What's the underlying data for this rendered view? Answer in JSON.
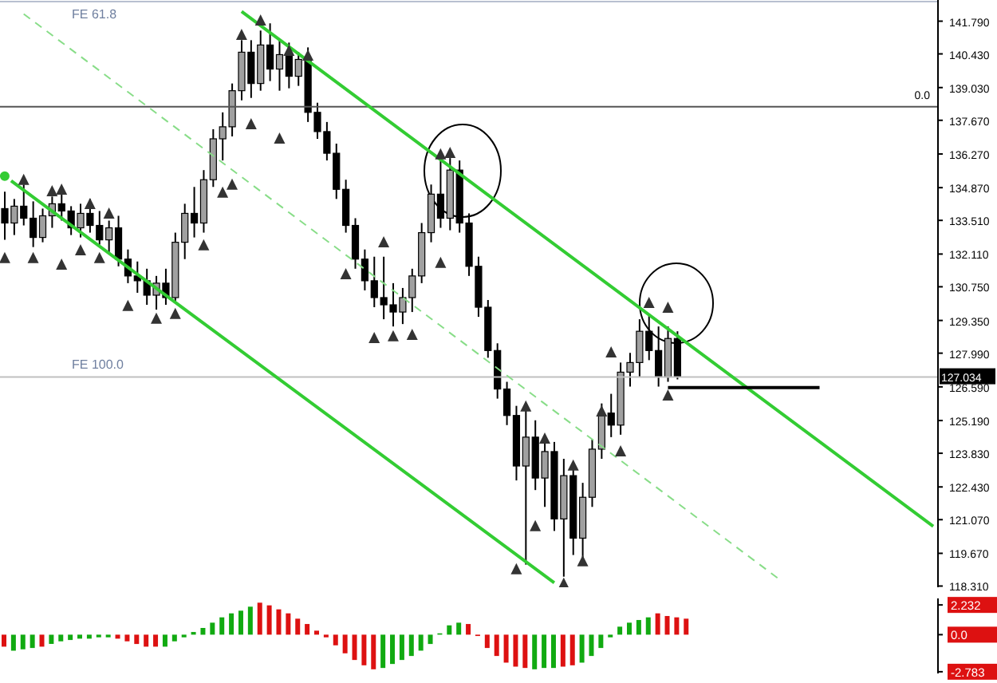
{
  "chart_data": [
    {
      "type": "candlestick",
      "categories": [
        null,
        null,
        null,
        null,
        null,
        null,
        null,
        null,
        null,
        null,
        null,
        null,
        null,
        null,
        null,
        null,
        null,
        null,
        null,
        null,
        null,
        null,
        null,
        null,
        null,
        null,
        null,
        null,
        null,
        null,
        null,
        null,
        null,
        null,
        null,
        null,
        null,
        null,
        null,
        null,
        null,
        null,
        null,
        null,
        null,
        null,
        null,
        null,
        null,
        null,
        null,
        null,
        null,
        null,
        null,
        null,
        null,
        null,
        null,
        null,
        null,
        null,
        null,
        null,
        null,
        null,
        null,
        null,
        null,
        null,
        null,
        null,
        null,
        null,
        null,
        null,
        null,
        null,
        null,
        null,
        null,
        null,
        null,
        null,
        null,
        null,
        null,
        null,
        null,
        null,
        null,
        null,
        null,
        null,
        null,
        null,
        null,
        null,
        null
      ],
      "ohlc": [
        [
          134.0,
          134.7,
          132.7,
          133.4
        ],
        [
          133.4,
          134.4,
          132.9,
          134.1
        ],
        [
          134.1,
          135.0,
          133.3,
          133.6
        ],
        [
          133.6,
          134.3,
          132.4,
          132.8
        ],
        [
          132.8,
          134.0,
          132.6,
          133.7
        ],
        [
          133.7,
          134.5,
          133.2,
          134.2
        ],
        [
          134.2,
          134.8,
          133.5,
          133.9
        ],
        [
          133.9,
          134.1,
          132.9,
          133.2
        ],
        [
          133.2,
          134.2,
          132.8,
          133.8
        ],
        [
          133.8,
          134.4,
          133.0,
          133.3
        ],
        [
          133.3,
          133.9,
          132.5,
          132.7
        ],
        [
          132.7,
          133.5,
          132.1,
          133.2
        ],
        [
          133.2,
          133.7,
          131.6,
          131.9
        ],
        [
          131.9,
          132.3,
          130.9,
          131.2
        ],
        [
          131.2,
          131.8,
          130.5,
          131.0
        ],
        [
          131.0,
          131.5,
          130.0,
          130.4
        ],
        [
          130.4,
          131.2,
          129.8,
          130.9
        ],
        [
          130.9,
          131.5,
          130.0,
          130.3
        ],
        [
          130.3,
          133.0,
          130.1,
          132.6
        ],
        [
          132.6,
          134.2,
          131.9,
          133.8
        ],
        [
          133.8,
          134.9,
          132.8,
          133.4
        ],
        [
          133.4,
          135.6,
          133.0,
          135.2
        ],
        [
          135.2,
          137.3,
          134.9,
          136.9
        ],
        [
          136.9,
          138.0,
          136.0,
          137.4
        ],
        [
          137.4,
          139.2,
          137.0,
          138.9
        ],
        [
          138.9,
          141.0,
          138.5,
          140.5
        ],
        [
          140.5,
          141.0,
          138.6,
          139.2
        ],
        [
          139.2,
          141.4,
          138.9,
          140.8
        ],
        [
          140.8,
          141.7,
          139.3,
          139.8
        ],
        [
          139.8,
          141.0,
          138.9,
          140.4
        ],
        [
          140.4,
          140.9,
          139.0,
          139.5
        ],
        [
          139.5,
          140.5,
          139.1,
          140.2
        ],
        [
          140.2,
          140.7,
          137.6,
          138.0
        ],
        [
          138.0,
          138.4,
          136.9,
          137.2
        ],
        [
          137.2,
          137.6,
          136.0,
          136.3
        ],
        [
          136.3,
          136.7,
          134.4,
          134.8
        ],
        [
          134.8,
          135.2,
          133.0,
          133.3
        ],
        [
          133.3,
          133.6,
          131.5,
          131.9
        ],
        [
          131.9,
          132.3,
          130.6,
          131.0
        ],
        [
          131.0,
          132.0,
          129.9,
          130.3
        ],
        [
          130.3,
          132.0,
          129.4,
          130.0
        ],
        [
          130.0,
          130.9,
          129.1,
          129.7
        ],
        [
          129.7,
          130.7,
          129.2,
          130.3
        ],
        [
          130.3,
          131.5,
          129.7,
          131.2
        ],
        [
          131.2,
          133.4,
          130.9,
          133.0
        ],
        [
          133.0,
          135.0,
          132.6,
          134.6
        ],
        [
          134.6,
          136.0,
          133.2,
          133.6
        ],
        [
          133.6,
          136.1,
          133.1,
          135.6
        ],
        [
          135.6,
          136.0,
          133.0,
          133.4
        ],
        [
          133.4,
          133.8,
          131.2,
          131.6
        ],
        [
          131.6,
          132.0,
          129.5,
          129.9
        ],
        [
          129.9,
          130.2,
          127.8,
          128.1
        ],
        [
          128.1,
          128.4,
          126.1,
          126.5
        ],
        [
          126.5,
          126.8,
          125.0,
          125.4
        ],
        [
          125.4,
          125.8,
          122.7,
          123.3
        ],
        [
          123.3,
          125.9,
          119.2,
          124.5
        ],
        [
          124.5,
          125.2,
          122.3,
          122.8
        ],
        [
          122.8,
          124.6,
          121.6,
          123.9
        ],
        [
          123.9,
          124.3,
          120.6,
          121.1
        ],
        [
          121.1,
          123.6,
          118.7,
          122.9
        ],
        [
          122.9,
          123.3,
          119.6,
          120.3
        ],
        [
          120.3,
          122.6,
          119.3,
          122.0
        ],
        [
          122.0,
          124.4,
          121.6,
          124.0
        ],
        [
          124.0,
          125.9,
          123.6,
          125.5
        ],
        [
          125.5,
          126.3,
          124.5,
          125.0
        ],
        [
          125.0,
          127.6,
          124.6,
          127.2
        ],
        [
          127.2,
          128.0,
          126.6,
          127.6
        ],
        [
          127.6,
          129.4,
          127.0,
          128.9
        ],
        [
          128.9,
          129.6,
          127.7,
          128.1
        ],
        [
          128.1,
          129.1,
          126.6,
          127.0
        ],
        [
          127.0,
          129.1,
          126.8,
          128.6
        ],
        [
          128.6,
          128.9,
          126.9,
          127.03
        ],
        null,
        null,
        null,
        null,
        null,
        null,
        null,
        null,
        null,
        null,
        null,
        null,
        null,
        null,
        null,
        null,
        null,
        null,
        null,
        null,
        null,
        null,
        null,
        null,
        null,
        null,
        null
      ],
      "color": "#000000",
      "series": [
        {
          "type": "line",
          "color": "#33cc33",
          "values": [
            null,
            null,
            null,
            null,
            null,
            null,
            null,
            null,
            null,
            null,
            null,
            null,
            null,
            null,
            null,
            null,
            null,
            null,
            null,
            null,
            null,
            null,
            null,
            null,
            null,
            142.19,
            null,
            null,
            null,
            null,
            null,
            null,
            null,
            null,
            null,
            null,
            null,
            null,
            null,
            null,
            null,
            null,
            null,
            null,
            null,
            null,
            null,
            null,
            null,
            null,
            null,
            null,
            null,
            null,
            null,
            null,
            null,
            null,
            null,
            null,
            null,
            null,
            null,
            null,
            null,
            null,
            null,
            null,
            null,
            null,
            null,
            null,
            null,
            null,
            null,
            null,
            null,
            null,
            null,
            null,
            null,
            null,
            null,
            null,
            null,
            null,
            null,
            null,
            null,
            null,
            null,
            null,
            null,
            null,
            null,
            null,
            null,
            null,
            120.79
          ]
        },
        {
          "type": "line",
          "color": "#33cc33",
          "values": [
            135.35,
            null,
            null,
            null,
            null,
            null,
            null,
            null,
            null,
            null,
            null,
            null,
            null,
            null,
            null,
            null,
            null,
            null,
            null,
            null,
            null,
            null,
            null,
            null,
            null,
            null,
            null,
            null,
            null,
            null,
            null,
            null,
            null,
            null,
            null,
            null,
            null,
            null,
            null,
            null,
            null,
            null,
            null,
            null,
            null,
            null,
            null,
            null,
            null,
            null,
            null,
            null,
            null,
            null,
            null,
            null,
            null,
            null,
            118.45,
            null,
            null,
            null,
            null,
            null,
            null,
            null,
            null,
            null,
            null,
            null,
            null,
            null,
            null,
            null,
            null,
            null,
            null,
            null,
            null,
            null,
            null,
            null,
            null,
            null,
            null,
            null,
            null,
            null,
            null,
            null,
            null,
            null,
            null,
            null,
            null,
            null,
            null,
            null,
            null
          ]
        },
        {
          "type": "line",
          "color": "#88dd88",
          "line_style": "dashed",
          "values": [
            null,
            null,
            142.09,
            null,
            null,
            null,
            null,
            null,
            null,
            null,
            null,
            null,
            null,
            null,
            null,
            null,
            null,
            null,
            null,
            null,
            null,
            null,
            null,
            null,
            null,
            null,
            null,
            null,
            null,
            null,
            null,
            null,
            null,
            null,
            null,
            null,
            null,
            null,
            null,
            null,
            null,
            null,
            null,
            null,
            null,
            null,
            null,
            null,
            null,
            null,
            null,
            null,
            null,
            null,
            null,
            null,
            null,
            null,
            null,
            null,
            null,
            null,
            null,
            null,
            null,
            null,
            null,
            null,
            null,
            null,
            null,
            null,
            null,
            null,
            null,
            null,
            null,
            null,
            null,
            null,
            null,
            null,
            118.52,
            null,
            null,
            null,
            null,
            null,
            null,
            null,
            null,
            null,
            null,
            null,
            null,
            null,
            null,
            null,
            null
          ]
        },
        {
          "type": "line",
          "color": "#000000",
          "values": [
            null,
            null,
            null,
            null,
            null,
            null,
            null,
            null,
            null,
            null,
            null,
            null,
            null,
            null,
            null,
            null,
            null,
            null,
            null,
            null,
            null,
            null,
            null,
            null,
            null,
            null,
            null,
            null,
            null,
            null,
            null,
            null,
            null,
            null,
            null,
            null,
            null,
            null,
            null,
            null,
            null,
            null,
            null,
            null,
            null,
            null,
            null,
            null,
            null,
            null,
            null,
            null,
            null,
            null,
            null,
            null,
            null,
            null,
            null,
            null,
            null,
            null,
            null,
            null,
            null,
            null,
            null,
            null,
            null,
            null,
            126.56,
            null,
            null,
            null,
            null,
            null,
            null,
            null,
            null,
            null,
            null,
            null,
            null,
            null,
            null,
            null,
            126.56,
            null,
            null,
            null,
            null,
            null,
            null,
            null,
            null,
            null,
            null,
            null,
            null
          ]
        },
        {
          "type": "scatter",
          "color": "#333333",
          "marker": "triangle",
          "values": [
            null,
            null,
            135.18,
            null,
            null,
            134.71,
            134.78,
            null,
            null,
            134.18,
            null,
            133.78,
            null,
            null,
            null,
            null,
            null,
            null,
            null,
            null,
            null,
            null,
            null,
            134.65,
            null,
            141.21,
            null,
            141.81,
            null,
            null,
            140.55,
            null,
            140.35,
            null,
            null,
            null,
            null,
            null,
            null,
            null,
            132.59,
            null,
            null,
            null,
            null,
            null,
            136.24,
            136.3,
            null,
            null,
            null,
            null,
            null,
            null,
            null,
            125.76,
            null,
            124.43,
            null,
            null,
            123.31,
            null,
            null,
            125.56,
            128.01,
            null,
            null,
            null,
            130.07,
            null,
            129.87,
            null,
            null,
            null,
            null,
            null,
            null,
            null,
            null,
            null,
            null,
            null,
            null,
            null,
            null,
            null,
            null,
            null,
            null,
            null,
            null,
            null,
            null,
            null,
            null,
            null,
            null,
            null,
            null
          ]
        },
        {
          "type": "scatter",
          "color": "#333333",
          "marker": "triangle",
          "values": [
            131.93,
            null,
            null,
            131.93,
            null,
            null,
            131.66,
            null,
            132.26,
            null,
            131.93,
            null,
            null,
            129.94,
            null,
            null,
            129.41,
            null,
            129.61,
            null,
            null,
            132.46,
            null,
            null,
            134.98,
            null,
            137.5,
            null,
            null,
            136.9,
            null,
            null,
            null,
            null,
            null,
            null,
            131.26,
            null,
            null,
            128.61,
            null,
            128.68,
            null,
            128.74,
            null,
            null,
            131.73,
            null,
            null,
            null,
            null,
            null,
            null,
            null,
            119.0,
            null,
            120.79,
            null,
            null,
            118.4,
            null,
            119.33,
            null,
            null,
            null,
            123.9,
            null,
            null,
            null,
            null,
            126.22,
            null,
            null,
            null,
            null,
            null,
            null,
            null,
            null,
            null,
            null,
            null,
            null,
            null,
            null,
            null,
            null,
            null,
            null,
            null,
            null,
            null,
            null,
            null,
            null,
            null,
            null,
            null,
            null
          ]
        }
      ],
      "ylim": [
        118.26,
        142.67
      ],
      "yticks": [
        {
          "value": 141.79,
          "label": "141.790"
        },
        {
          "value": 140.43,
          "label": "140.430"
        },
        {
          "value": 139.03,
          "label": "139.030"
        },
        {
          "value": 137.67,
          "label": "137.670"
        },
        {
          "value": 136.27,
          "label": "136.270"
        },
        {
          "value": 134.87,
          "label": "134.870"
        },
        {
          "value": 133.51,
          "label": "133.510"
        },
        {
          "value": 132.11,
          "label": "132.110"
        },
        {
          "value": 130.75,
          "label": "130.750"
        },
        {
          "value": 129.35,
          "label": "129.350"
        },
        {
          "value": 127.99,
          "label": "127.990"
        },
        {
          "value": 126.59,
          "label": "126.590"
        },
        {
          "value": 125.19,
          "label": "125.190"
        },
        {
          "value": 123.83,
          "label": "123.830"
        },
        {
          "value": 122.43,
          "label": "122.430"
        },
        {
          "value": 121.07,
          "label": "121.070"
        },
        {
          "value": 119.67,
          "label": "119.670"
        },
        {
          "value": 118.31,
          "label": "118.310"
        }
      ],
      "ref_lines": [
        {
          "axis": "y",
          "value": 142.6,
          "label": "FE 61.8",
          "color": "#b8c0d0"
        },
        {
          "axis": "y",
          "value": 138.23,
          "color": "#555555"
        },
        {
          "axis": "y",
          "value": 127.0,
          "label": "FE 100.0",
          "color": "#c0c0c0"
        }
      ],
      "annotations": [
        "127.034",
        {
          "text": "0.0",
          "y": 138.23
        }
      ],
      "tick_labels": "y",
      "legend": false
    },
    {
      "type": "bar",
      "categories": [
        null,
        null,
        null,
        null,
        null,
        null,
        null,
        null,
        null,
        null,
        null,
        null,
        null,
        null,
        null,
        null,
        null,
        null,
        null,
        null,
        null,
        null,
        null,
        null,
        null,
        null,
        null,
        null,
        null,
        null,
        null,
        null,
        null,
        null,
        null,
        null,
        null,
        null,
        null,
        null,
        null,
        null,
        null,
        null,
        null,
        null,
        null,
        null,
        null,
        null,
        null,
        null,
        null,
        null,
        null,
        null,
        null,
        null,
        null,
        null,
        null,
        null,
        null,
        null,
        null,
        null,
        null,
        null,
        null,
        null,
        null,
        null,
        null,
        null,
        null,
        null,
        null,
        null,
        null,
        null,
        null,
        null,
        null,
        null,
        null,
        null,
        null,
        null,
        null,
        null,
        null,
        null,
        null,
        null,
        null,
        null,
        null,
        null,
        null
      ],
      "values": [
        -0.9,
        -1.2,
        -1.1,
        -1.0,
        -0.9,
        -0.7,
        -0.5,
        -0.4,
        -0.3,
        -0.3,
        -0.2,
        -0.2,
        -0.3,
        -0.5,
        -0.7,
        -0.9,
        -0.9,
        -0.9,
        -0.5,
        -0.2,
        0.2,
        0.5,
        0.9,
        1.3,
        1.6,
        1.8,
        2.1,
        2.4,
        2.2,
        1.9,
        1.6,
        1.2,
        0.8,
        0.3,
        -0.2,
        -0.8,
        -1.4,
        -1.9,
        -2.3,
        -2.6,
        -2.5,
        -2.2,
        -1.9,
        -1.6,
        -1.2,
        -0.7,
        0.1,
        0.7,
        0.9,
        0.8,
        -0.1,
        -1.0,
        -1.6,
        -2.1,
        -2.4,
        -2.5,
        -2.6,
        -2.5,
        -2.5,
        -2.4,
        -2.3,
        -2.1,
        -1.6,
        -1.0,
        -0.2,
        0.6,
        0.9,
        1.1,
        1.3,
        1.6,
        1.4,
        1.3,
        1.2,
        null,
        null,
        null,
        null,
        null,
        null,
        null,
        null,
        null,
        null,
        null,
        null,
        null,
        null,
        null,
        null,
        null,
        null,
        null,
        null,
        null,
        null,
        null,
        null,
        null,
        null
      ],
      "colors": [
        "#dd1111",
        "#11aa11",
        "#11aa11",
        "#11aa11",
        "#dd1111",
        "#11aa11",
        "#11aa11",
        "#11aa11",
        "#11aa11",
        "#11aa11",
        "#11aa11",
        "#11aa11",
        "#dd1111",
        "#dd1111",
        "#dd1111",
        "#dd1111",
        "#dd1111",
        "#11aa11",
        "#11aa11",
        "#11aa11",
        "#11aa11",
        "#11aa11",
        "#11aa11",
        "#11aa11",
        "#11aa11",
        "#11aa11",
        "#11aa11",
        "#dd1111",
        "#dd1111",
        "#dd1111",
        "#dd1111",
        "#dd1111",
        "#dd1111",
        "#dd1111",
        "#dd1111",
        "#dd1111",
        "#dd1111",
        "#dd1111",
        "#dd1111",
        "#dd1111",
        "#11aa11",
        "#11aa11",
        "#11aa11",
        "#11aa11",
        "#11aa11",
        "#11aa11",
        "#11aa11",
        "#11aa11",
        "#11aa11",
        "#dd1111",
        "#dd1111",
        "#dd1111",
        "#dd1111",
        "#dd1111",
        "#dd1111",
        "#dd1111",
        "#11aa11",
        "#11aa11",
        "#11aa11",
        "#dd1111",
        "#dd1111",
        "#11aa11",
        "#11aa11",
        "#11aa11",
        "#11aa11",
        "#11aa11",
        "#11aa11",
        "#11aa11",
        "#11aa11",
        "#dd1111",
        "#dd1111",
        "#dd1111",
        "#dd1111",
        null,
        null,
        null,
        null,
        null,
        null,
        null,
        null,
        null,
        null,
        null,
        null,
        null,
        null,
        null,
        null,
        null,
        null,
        null,
        null,
        null,
        null,
        null,
        null,
        null,
        null
      ],
      "ylim": [
        -2.91,
        2.72
      ],
      "yticks": [
        2.232,
        {
          "value": 0,
          "label": "0.0"
        },
        -2.783
      ],
      "tick_labels": "y",
      "legend": false
    }
  ]
}
